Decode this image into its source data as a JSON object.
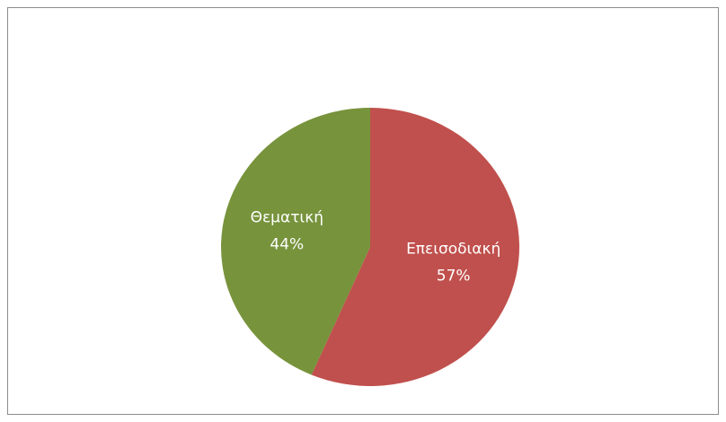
{
  "chart_data": {
    "type": "pie",
    "categories": [
      "Επεισοδιακή",
      "Θεματική"
    ],
    "values": [
      57,
      44
    ],
    "value_labels": [
      "57%",
      "44%"
    ],
    "colors": [
      "#c0504d",
      "#77933c"
    ]
  }
}
